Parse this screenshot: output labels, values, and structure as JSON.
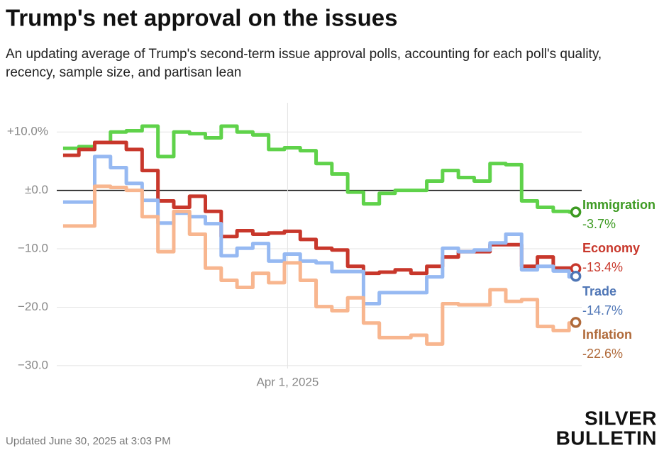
{
  "chart_data": {
    "type": "line",
    "title": "Trump's net approval on the issues",
    "subtitle": "An updating average of Trump's second-term issue approval polls, accounting for each poll's quality, recency, sample size, and partisan lean",
    "footer": "Updated June 30, 2025 at 3:03 PM",
    "brand": [
      "SILVER",
      "BULLETIN"
    ],
    "step": true,
    "grid": true,
    "x": [
      "2025-01-20",
      "2025-01-25",
      "2025-01-30",
      "2025-02-04",
      "2025-02-09",
      "2025-02-14",
      "2025-02-19",
      "2025-02-24",
      "2025-03-01",
      "2025-03-06",
      "2025-03-11",
      "2025-03-16",
      "2025-03-21",
      "2025-03-26",
      "2025-03-31",
      "2025-04-05",
      "2025-04-10",
      "2025-04-15",
      "2025-04-20",
      "2025-04-25",
      "2025-04-30",
      "2025-05-05",
      "2025-05-10",
      "2025-05-15",
      "2025-05-20",
      "2025-05-25",
      "2025-05-30",
      "2025-06-04",
      "2025-06-09",
      "2025-06-14",
      "2025-06-19",
      "2025-06-24",
      "2025-06-29",
      "2025-06-30"
    ],
    "xlim": [
      "2025-01-18",
      "2025-07-03"
    ],
    "xticks": [
      {
        "value": "2025-04-01",
        "label": "Apr 1, 2025"
      }
    ],
    "ylim": [
      -30.5,
      15
    ],
    "yticks": [
      {
        "value": 10,
        "label": "+10.0%"
      },
      {
        "value": 0,
        "label": "±0.0"
      },
      {
        "value": -10,
        "label": "−10.0"
      },
      {
        "value": -20,
        "label": "−20.0"
      },
      {
        "value": -30,
        "label": "−30.0"
      }
    ],
    "series": [
      {
        "name": "Immigration",
        "color": "#5fd24a",
        "label_color": "#3d9a22",
        "end_label": "-3.7%",
        "values": [
          7.2,
          7.5,
          8.2,
          10,
          10.2,
          11,
          5.8,
          10,
          9.7,
          9,
          11,
          10,
          9.5,
          7,
          7.3,
          6.8,
          4.6,
          2.8,
          -0.3,
          -2.3,
          -0.5,
          0,
          0,
          1.6,
          3.4,
          2.2,
          1.6,
          4.6,
          4.4,
          -1.8,
          -2.9,
          -3.6,
          -3.7,
          -3.7
        ]
      },
      {
        "name": "Economy",
        "color": "#c8372b",
        "label_color": "#c8372b",
        "end_label": "-13.4%",
        "values": [
          6,
          7,
          8.2,
          8.2,
          7,
          3.4,
          -1.8,
          -2.9,
          -1,
          -3.6,
          -7.9,
          -6.9,
          -7.5,
          -7.3,
          -7,
          -8.4,
          -9.9,
          -10.2,
          -13,
          -14.2,
          -14,
          -13.6,
          -14.2,
          -13,
          -11.4,
          -10.5,
          -10.5,
          -9.3,
          -9.3,
          -13,
          -11.4,
          -13.3,
          -13.3,
          -13.4
        ]
      },
      {
        "name": "Trade",
        "color": "#96b9f2",
        "label_color": "#4f76b6",
        "end_label": "-14.7%",
        "values": [
          -2,
          -2,
          5.8,
          3.9,
          1.2,
          -1.7,
          -5.6,
          -3.9,
          -4.5,
          -5.7,
          -11.2,
          -9.9,
          -9.1,
          -12.1,
          -10.9,
          -12.1,
          -12.4,
          -13.9,
          -13.9,
          -19.4,
          -17.5,
          -17.5,
          -17.5,
          -14.8,
          -9.9,
          -10.5,
          -10.2,
          -9,
          -7.5,
          -13.6,
          -13,
          -13.8,
          -14.8,
          -14.7
        ]
      },
      {
        "name": "Inflation",
        "color": "#f8b68f",
        "label_color": "#b06a3a",
        "end_label": "-22.6%",
        "values": [
          -6.1,
          -6.1,
          0.7,
          0.5,
          0,
          -4.5,
          -10.5,
          -3.6,
          -7.5,
          -13.3,
          -15.4,
          -16.6,
          -14.2,
          -15.8,
          -12.4,
          -15.4,
          -19.9,
          -20.6,
          -18.4,
          -22.7,
          -25.2,
          -25.2,
          -24.8,
          -26.3,
          -19.4,
          -19.6,
          -19.6,
          -17,
          -19,
          -18.7,
          -23.3,
          -24,
          -22.7,
          -22.6
        ]
      }
    ]
  }
}
